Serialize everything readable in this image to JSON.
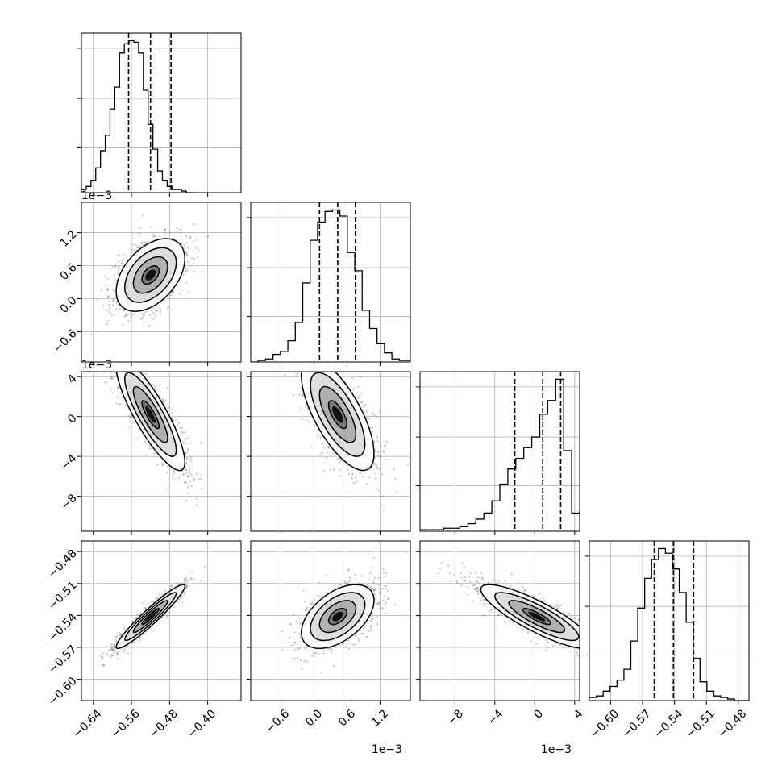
{
  "chart_data": {
    "type": "corner",
    "title": "",
    "parameters": [
      {
        "name": "p1",
        "label": "",
        "offset_label": "",
        "range": [
          -0.665,
          -0.33
        ],
        "ticks": [
          -0.64,
          -0.56,
          -0.48,
          -0.4
        ],
        "tick_labels": [
          "−0.64",
          "−0.56",
          "−0.48",
          "−0.40"
        ],
        "quantiles": [
          -0.566,
          -0.52,
          -0.477
        ],
        "histogram": {
          "bin_start": -0.665,
          "bin_width": 0.01,
          "counts": [
            2,
            4,
            8,
            16,
            27,
            37,
            54,
            68,
            90,
            96,
            98,
            97,
            90,
            66,
            44,
            28,
            14,
            8,
            4,
            2,
            2,
            1,
            0,
            0
          ]
        }
      },
      {
        "name": "p2",
        "label": "",
        "offset_label": "1e−3",
        "range": [
          -1.15,
          1.75
        ],
        "ticks": [
          -0.6,
          0.0,
          0.6,
          1.2
        ],
        "tick_labels": [
          "−0.6",
          "0.0",
          "0.6",
          "1.2"
        ],
        "quantiles": [
          0.1,
          0.43,
          0.75
        ],
        "histogram": {
          "bin_start": -1.15,
          "bin_width": 0.135,
          "counts": [
            0,
            1,
            2,
            5,
            7,
            14,
            26,
            52,
            80,
            92,
            99,
            100,
            96,
            72,
            60,
            34,
            22,
            12,
            6,
            2,
            1,
            1
          ]
        }
      },
      {
        "name": "p3",
        "label": "",
        "offset_label": "1e−3",
        "range": [
          -11.5,
          4.5
        ],
        "ticks": [
          -8,
          -4,
          0,
          4
        ],
        "tick_labels": [
          "−8",
          "−4",
          "0",
          "4"
        ],
        "quantiles": [
          -2.0,
          0.8,
          2.6
        ],
        "histogram": {
          "bin_start": -11.5,
          "bin_width": 0.8,
          "counts": [
            1,
            1,
            1,
            2,
            2,
            3,
            5,
            8,
            12,
            20,
            31,
            41,
            48,
            55,
            62,
            77,
            86,
            100,
            53,
            12
          ]
        }
      },
      {
        "name": "p4",
        "label": "",
        "offset_label": "",
        "range": [
          -0.62,
          -0.47
        ],
        "ticks": [
          -0.6,
          -0.57,
          -0.54,
          -0.51,
          -0.48
        ],
        "tick_labels": [
          "−0.60",
          "−0.57",
          "−0.54",
          "−0.51",
          "−0.48"
        ],
        "quantiles": [
          -0.559,
          -0.541,
          -0.522
        ],
        "histogram": {
          "bin_start": -0.62,
          "bin_width": 0.0065,
          "counts": [
            2,
            3,
            6,
            9,
            13,
            20,
            38,
            59,
            78,
            90,
            97,
            94,
            84,
            69,
            50,
            27,
            12,
            6,
            3,
            2,
            1,
            0,
            0
          ]
        }
      }
    ],
    "pairs": [
      {
        "x": 0,
        "y": 1,
        "mean": [
          -0.52,
          0.43
        ],
        "std": [
          0.036,
          0.33
        ],
        "corr": 0.45
      },
      {
        "x": 0,
        "y": 2,
        "mean": [
          -0.52,
          0.2
        ],
        "std": [
          0.036,
          2.8
        ],
        "corr": -0.85
      },
      {
        "x": 1,
        "y": 2,
        "mean": [
          0.43,
          0.2
        ],
        "std": [
          0.33,
          2.8
        ],
        "corr": -0.7
      },
      {
        "x": 0,
        "y": 3,
        "mean": [
          -0.52,
          -0.541
        ],
        "std": [
          0.036,
          0.015
        ],
        "corr": 0.95
      },
      {
        "x": 1,
        "y": 3,
        "mean": [
          0.43,
          -0.541
        ],
        "std": [
          0.33,
          0.015
        ],
        "corr": 0.5
      },
      {
        "x": 2,
        "y": 3,
        "mean": [
          0.2,
          -0.541
        ],
        "std": [
          2.8,
          0.015
        ],
        "corr": -0.85
      }
    ],
    "contour_levels": [
      0.5,
      1.0,
      1.5,
      2.0
    ],
    "grid": true,
    "legend": "none"
  }
}
